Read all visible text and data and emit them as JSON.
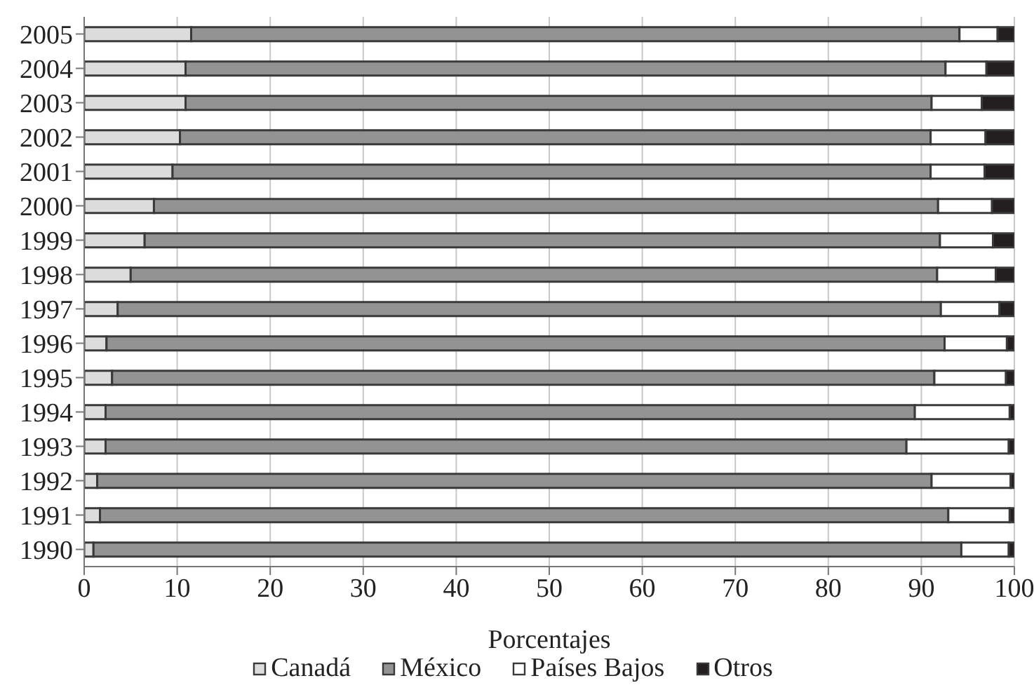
{
  "chart_data": {
    "type": "bar",
    "orientation": "horizontal",
    "stacked": true,
    "xlabel": "Porcentajes",
    "categories": [
      "2005",
      "2004",
      "2003",
      "2002",
      "2001",
      "2000",
      "1999",
      "1998",
      "1997",
      "1996",
      "1995",
      "1994",
      "1993",
      "1992",
      "1991",
      "1990"
    ],
    "series": [
      {
        "name": "Canadá",
        "color": "#dcdcdc",
        "values": [
          11.5,
          10.9,
          10.9,
          10.3,
          9.5,
          7.5,
          6.5,
          5.0,
          3.6,
          2.4,
          3.0,
          2.3,
          2.3,
          1.4,
          1.7,
          1.0
        ]
      },
      {
        "name": "México",
        "color": "#939393",
        "values": [
          82.6,
          81.7,
          80.2,
          80.7,
          81.5,
          84.3,
          85.5,
          86.7,
          88.5,
          90.1,
          88.4,
          87.0,
          86.1,
          89.7,
          91.2,
          93.3
        ]
      },
      {
        "name": "Países Bajos",
        "color": "#ffffff",
        "values": [
          4.1,
          4.4,
          5.4,
          5.9,
          5.8,
          5.8,
          5.7,
          6.3,
          6.3,
          6.7,
          7.7,
          10.2,
          11.0,
          8.5,
          6.6,
          5.1
        ]
      },
      {
        "name": "Otros",
        "color": "#231f20",
        "values": [
          1.8,
          3.0,
          3.5,
          3.1,
          3.2,
          2.4,
          2.3,
          2.0,
          1.6,
          0.8,
          0.9,
          0.5,
          0.6,
          0.4,
          0.5,
          0.6
        ]
      }
    ],
    "xlim": [
      0,
      100
    ],
    "xticks": [
      0,
      10,
      20,
      30,
      40,
      50,
      60,
      70,
      80,
      90,
      100
    ],
    "grid": "x",
    "legend": "bottom"
  }
}
